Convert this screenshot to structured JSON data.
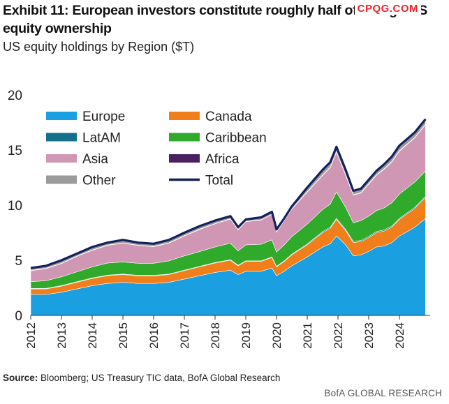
{
  "header": {
    "title": "Exhibit 11: European investors constitute roughly half of foreign US equity ownership",
    "subtitle": "US equity holdings by Region ($T)",
    "watermark": "CPQG.COM"
  },
  "footer": {
    "source_label": "Source:",
    "source_text": "Bloomberg; US Treasury TIC data, BofA Global Research",
    "brand": "BofA GLOBAL RESEARCH"
  },
  "colors": {
    "Europe": "#1aa0e0",
    "Canada": "#f07e1a",
    "LatAM": "#136f8a",
    "Caribbean": "#2faa2a",
    "Asia": "#cf97b3",
    "Africa": "#4b2060",
    "Other": "#9a9a9a",
    "Total": "#14225c"
  },
  "chart_data": {
    "type": "area",
    "stacked": true,
    "title": "",
    "xlabel": "",
    "ylabel": "",
    "ylim": [
      0,
      20
    ],
    "yticks": [
      0,
      5,
      10,
      15,
      20
    ],
    "xlim": [
      2012,
      2025
    ],
    "xtick_labels": [
      "2012",
      "2013",
      "2014",
      "2015",
      "2016",
      "2017",
      "2018",
      "2019",
      "2020",
      "2021",
      "2022",
      "2023",
      "2024"
    ],
    "grid": false,
    "legend_position": "top-left",
    "x": [
      2012.0,
      2012.5,
      2013.0,
      2013.5,
      2014.0,
      2014.5,
      2015.0,
      2015.5,
      2016.0,
      2016.5,
      2017.0,
      2017.5,
      2018.0,
      2018.5,
      2018.75,
      2019.0,
      2019.5,
      2019.85,
      2020.0,
      2020.25,
      2020.5,
      2021.0,
      2021.5,
      2021.75,
      2021.95,
      2022.25,
      2022.5,
      2022.75,
      2023.0,
      2023.25,
      2023.5,
      2023.75,
      2024.0,
      2024.5,
      2024.85
    ],
    "series": [
      {
        "name": "Europe",
        "values": [
          1.9,
          1.9,
          2.1,
          2.4,
          2.7,
          2.9,
          3.0,
          2.9,
          2.9,
          3.0,
          3.3,
          3.6,
          3.9,
          4.1,
          3.7,
          4.0,
          4.0,
          4.3,
          3.6,
          4.0,
          4.5,
          5.3,
          6.2,
          6.5,
          7.2,
          6.4,
          5.4,
          5.5,
          5.8,
          6.2,
          6.3,
          6.6,
          7.2,
          8.0,
          8.8
        ]
      },
      {
        "name": "Canada",
        "values": [
          0.5,
          0.5,
          0.55,
          0.6,
          0.65,
          0.7,
          0.7,
          0.68,
          0.68,
          0.7,
          0.75,
          0.8,
          0.85,
          0.9,
          0.8,
          0.9,
          0.9,
          0.95,
          0.8,
          0.9,
          1.0,
          1.1,
          1.3,
          1.4,
          1.5,
          1.3,
          1.2,
          1.2,
          1.25,
          1.3,
          1.35,
          1.4,
          1.5,
          1.7,
          1.9
        ]
      },
      {
        "name": "LatAM",
        "values": [
          0.05,
          0.05,
          0.05,
          0.05,
          0.05,
          0.05,
          0.05,
          0.05,
          0.05,
          0.05,
          0.05,
          0.05,
          0.05,
          0.05,
          0.05,
          0.05,
          0.05,
          0.05,
          0.05,
          0.05,
          0.05,
          0.08,
          0.1,
          0.1,
          0.1,
          0.1,
          0.1,
          0.1,
          0.1,
          0.1,
          0.1,
          0.1,
          0.1,
          0.1,
          0.1
        ]
      },
      {
        "name": "Caribbean",
        "values": [
          0.6,
          0.7,
          0.8,
          0.9,
          1.0,
          1.1,
          1.1,
          1.1,
          1.1,
          1.2,
          1.3,
          1.35,
          1.4,
          1.5,
          1.3,
          1.45,
          1.5,
          1.55,
          1.3,
          1.45,
          1.6,
          1.8,
          2.0,
          2.1,
          2.4,
          2.0,
          1.7,
          1.8,
          1.85,
          1.9,
          2.0,
          2.1,
          2.2,
          2.3,
          2.3
        ]
      },
      {
        "name": "Asia",
        "values": [
          1.0,
          1.1,
          1.2,
          1.4,
          1.5,
          1.6,
          1.7,
          1.6,
          1.5,
          1.6,
          1.8,
          2.0,
          2.1,
          2.2,
          1.9,
          2.1,
          2.2,
          2.3,
          1.8,
          2.2,
          2.5,
          2.9,
          3.1,
          3.3,
          3.6,
          2.9,
          2.5,
          2.5,
          2.9,
          3.2,
          3.5,
          3.7,
          3.9,
          4.0,
          4.2
        ]
      },
      {
        "name": "Africa",
        "values": [
          0.03,
          0.03,
          0.03,
          0.03,
          0.03,
          0.03,
          0.03,
          0.03,
          0.03,
          0.03,
          0.03,
          0.03,
          0.03,
          0.03,
          0.03,
          0.03,
          0.03,
          0.03,
          0.03,
          0.03,
          0.03,
          0.04,
          0.05,
          0.05,
          0.05,
          0.05,
          0.05,
          0.05,
          0.05,
          0.05,
          0.05,
          0.05,
          0.05,
          0.05,
          0.05
        ]
      },
      {
        "name": "Other",
        "values": [
          0.22,
          0.22,
          0.27,
          0.25,
          0.27,
          0.27,
          0.27,
          0.27,
          0.27,
          0.27,
          0.27,
          0.27,
          0.27,
          0.22,
          0.22,
          0.22,
          0.25,
          0.27,
          0.22,
          0.2,
          0.27,
          0.38,
          0.45,
          0.45,
          0.45,
          0.45,
          0.35,
          0.35,
          0.35,
          0.35,
          0.4,
          0.45,
          0.45,
          0.45,
          0.45
        ]
      }
    ],
    "total": {
      "name": "Total",
      "values": [
        4.3,
        4.5,
        5.0,
        5.6,
        6.2,
        6.6,
        6.85,
        6.6,
        6.5,
        6.85,
        7.5,
        8.1,
        8.6,
        9.0,
        8.0,
        8.7,
        8.9,
        9.4,
        7.8,
        8.8,
        9.9,
        11.6,
        13.2,
        13.9,
        15.3,
        13.2,
        11.3,
        11.5,
        12.3,
        13.1,
        13.7,
        14.4,
        15.4,
        16.6,
        17.8
      ]
    },
    "legend": [
      "Europe",
      "Canada",
      "LatAM",
      "Caribbean",
      "Asia",
      "Africa",
      "Other",
      "Total"
    ]
  }
}
